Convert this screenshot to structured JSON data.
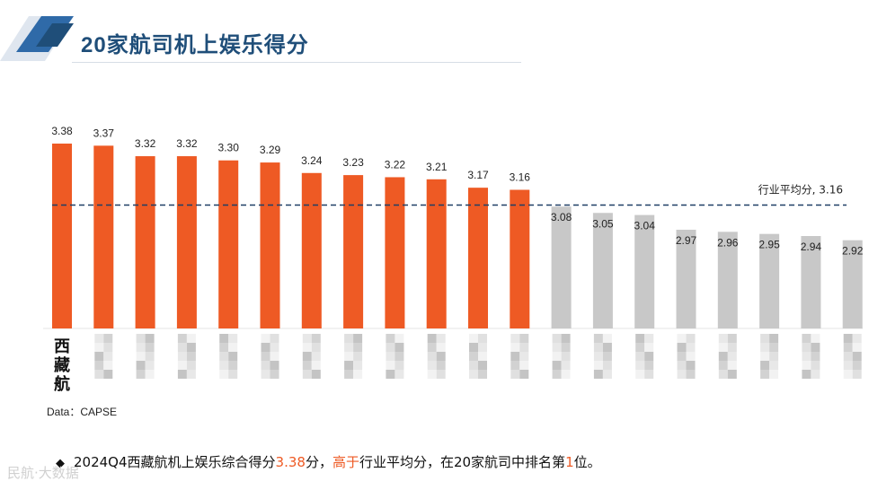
{
  "header": {
    "title": "20家航司机上娱乐得分"
  },
  "chart_data": {
    "type": "bar",
    "categories": [
      "西藏航",
      "",
      "",
      "",
      "",
      "",
      "",
      "",
      "",
      "",
      "",
      "",
      "",
      "",
      "",
      "",
      "",
      "",
      "",
      ""
    ],
    "values": [
      3.38,
      3.37,
      3.32,
      3.32,
      3.3,
      3.29,
      3.24,
      3.23,
      3.22,
      3.21,
      3.17,
      3.16,
      3.08,
      3.05,
      3.04,
      2.97,
      2.96,
      2.95,
      2.94,
      2.92
    ],
    "value_labels": [
      "3.38",
      "3.37",
      "3.32",
      "3.32",
      "3.30",
      "3.29",
      "3.24",
      "3.23",
      "3.22",
      "3.21",
      "3.17",
      "3.16",
      "3.08",
      "3.05",
      "3.04",
      "2.97",
      "2.96",
      "2.95",
      "2.94",
      "2.92"
    ],
    "highlight_count": 12,
    "colors": {
      "above_average": "#ee5a24",
      "below_average": "#c8c8c8",
      "average_line": "#1f3f66"
    },
    "reference_line": {
      "label": "行业平均分, 3.16",
      "value": 3.16
    },
    "ylim": [
      2.5,
      3.4
    ],
    "grid": false,
    "legend": "none",
    "note": "Category names other than 西藏航 are pixelated in the original image."
  },
  "source": "Data：CAPSE",
  "footnote": {
    "bullet": "◆",
    "part1": "2024Q4西藏航机上娱乐综合得分",
    "score": "3.38",
    "part2": "分，",
    "higher": "高于",
    "part3": "行业平均分，在20家航司中排名第",
    "rank": "1",
    "part4": "位。"
  },
  "watermark": "民航·大数据"
}
